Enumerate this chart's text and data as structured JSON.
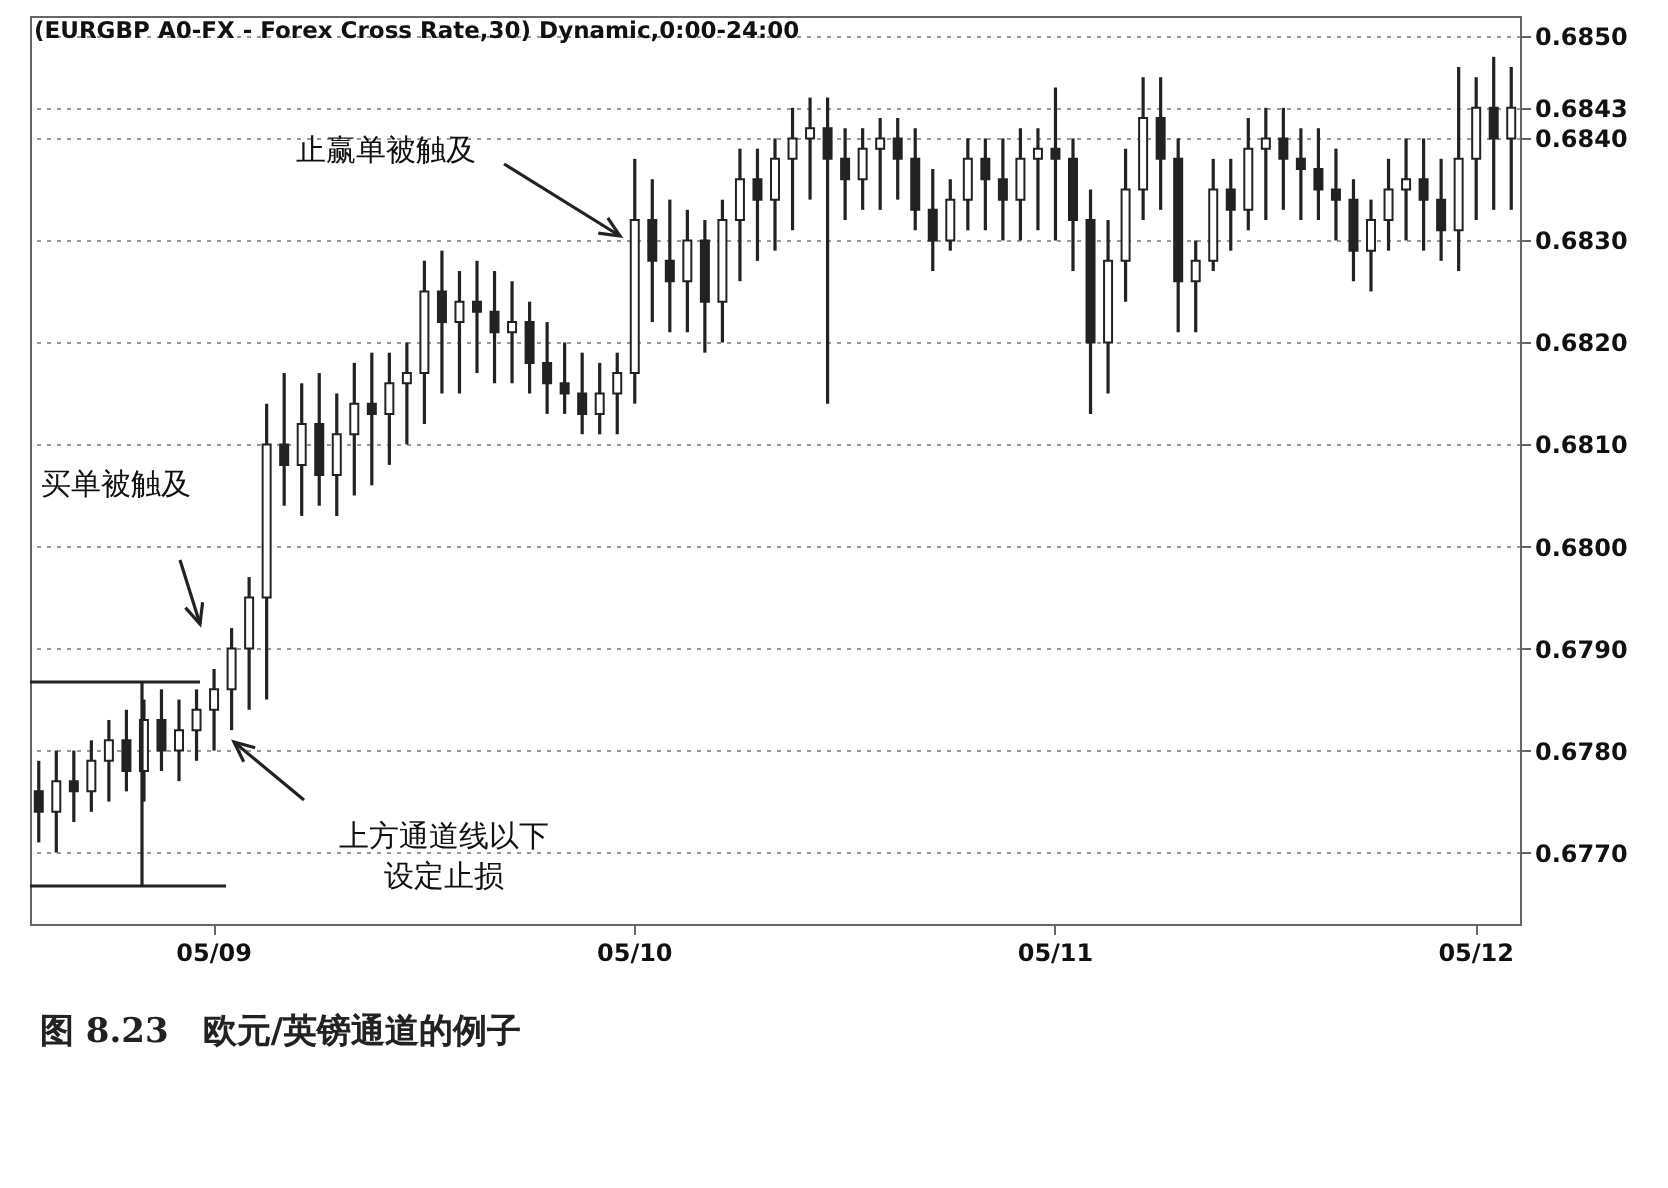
{
  "chart_data": {
    "type": "candlestick",
    "title": "(EURGBP A0-FX - Forex Cross Rate,30) Dynamic,0:00-24:00",
    "color": "#222222",
    "categories": [
      null,
      null,
      null,
      null,
      null,
      null,
      null,
      null,
      null,
      null,
      "05/09",
      null,
      null,
      null,
      null,
      null,
      null,
      null,
      null,
      null,
      null,
      null,
      null,
      null,
      null,
      null,
      null,
      null,
      null,
      null,
      null,
      null,
      null,
      null,
      "05/10",
      null,
      null,
      null,
      null,
      null,
      null,
      null,
      null,
      null,
      null,
      null,
      null,
      null,
      null,
      null,
      null,
      null,
      null,
      null,
      null,
      null,
      null,
      null,
      "05/11",
      null,
      null,
      null,
      null,
      null,
      null,
      null,
      null,
      null,
      null,
      null,
      null,
      null,
      null,
      null,
      null,
      null,
      null,
      null,
      null,
      null,
      null,
      null,
      "05/12",
      null,
      null
    ],
    "ohlc": [
      [
        0.6776,
        0.6779,
        0.6771,
        0.6774
      ],
      [
        0.6774,
        0.678,
        0.677,
        0.6777
      ],
      [
        0.6777,
        0.678,
        0.6773,
        0.6776
      ],
      [
        0.6776,
        0.6781,
        0.6774,
        0.6779
      ],
      [
        0.6779,
        0.6783,
        0.6775,
        0.6781
      ],
      [
        0.6781,
        0.6784,
        0.6776,
        0.6778
      ],
      [
        0.6778,
        0.6785,
        0.6775,
        0.6783
      ],
      [
        0.6783,
        0.6786,
        0.6778,
        0.678
      ],
      [
        0.678,
        0.6785,
        0.6777,
        0.6782
      ],
      [
        0.6782,
        0.6786,
        0.6779,
        0.6784
      ],
      [
        0.6784,
        0.6788,
        0.678,
        0.6786
      ],
      [
        0.6786,
        0.6792,
        0.6782,
        0.679
      ],
      [
        0.679,
        0.6797,
        0.6784,
        0.6795
      ],
      [
        0.6795,
        0.6814,
        0.6785,
        0.681
      ],
      [
        0.681,
        0.6817,
        0.6804,
        0.6808
      ],
      [
        0.6808,
        0.6816,
        0.6803,
        0.6812
      ],
      [
        0.6812,
        0.6817,
        0.6804,
        0.6807
      ],
      [
        0.6807,
        0.6815,
        0.6803,
        0.6811
      ],
      [
        0.6811,
        0.6818,
        0.6805,
        0.6814
      ],
      [
        0.6814,
        0.6819,
        0.6806,
        0.6813
      ],
      [
        0.6813,
        0.6819,
        0.6808,
        0.6816
      ],
      [
        0.6816,
        0.682,
        0.681,
        0.6817
      ],
      [
        0.6817,
        0.6828,
        0.6812,
        0.6825
      ],
      [
        0.6825,
        0.6829,
        0.6815,
        0.6822
      ],
      [
        0.6822,
        0.6827,
        0.6815,
        0.6824
      ],
      [
        0.6824,
        0.6828,
        0.6817,
        0.6823
      ],
      [
        0.6823,
        0.6827,
        0.6816,
        0.6821
      ],
      [
        0.6821,
        0.6826,
        0.6816,
        0.6822
      ],
      [
        0.6822,
        0.6824,
        0.6815,
        0.6818
      ],
      [
        0.6818,
        0.6822,
        0.6813,
        0.6816
      ],
      [
        0.6816,
        0.682,
        0.6813,
        0.6815
      ],
      [
        0.6815,
        0.6819,
        0.6811,
        0.6813
      ],
      [
        0.6813,
        0.6818,
        0.6811,
        0.6815
      ],
      [
        0.6815,
        0.6819,
        0.6811,
        0.6817
      ],
      [
        0.6817,
        0.6838,
        0.6814,
        0.6832
      ],
      [
        0.6832,
        0.6836,
        0.6822,
        0.6828
      ],
      [
        0.6828,
        0.6834,
        0.6821,
        0.6826
      ],
      [
        0.6826,
        0.6833,
        0.6821,
        0.683
      ],
      [
        0.683,
        0.6832,
        0.6819,
        0.6824
      ],
      [
        0.6824,
        0.6834,
        0.682,
        0.6832
      ],
      [
        0.6832,
        0.6839,
        0.6826,
        0.6836
      ],
      [
        0.6836,
        0.6839,
        0.6828,
        0.6834
      ],
      [
        0.6834,
        0.684,
        0.6829,
        0.6838
      ],
      [
        0.6838,
        0.6843,
        0.6831,
        0.684
      ],
      [
        0.684,
        0.6844,
        0.6834,
        0.6841
      ],
      [
        0.6841,
        0.6844,
        0.6814,
        0.6838
      ],
      [
        0.6838,
        0.6841,
        0.6832,
        0.6836
      ],
      [
        0.6836,
        0.6841,
        0.6833,
        0.6839
      ],
      [
        0.6839,
        0.6842,
        0.6833,
        0.684
      ],
      [
        0.684,
        0.6842,
        0.6834,
        0.6838
      ],
      [
        0.6838,
        0.6841,
        0.6831,
        0.6833
      ],
      [
        0.6833,
        0.6837,
        0.6827,
        0.683
      ],
      [
        0.683,
        0.6836,
        0.6829,
        0.6834
      ],
      [
        0.6834,
        0.684,
        0.6831,
        0.6838
      ],
      [
        0.6838,
        0.684,
        0.6831,
        0.6836
      ],
      [
        0.6836,
        0.684,
        0.683,
        0.6834
      ],
      [
        0.6834,
        0.6841,
        0.683,
        0.6838
      ],
      [
        0.6838,
        0.6841,
        0.6831,
        0.6839
      ],
      [
        0.6839,
        0.6845,
        0.683,
        0.6838
      ],
      [
        0.6838,
        0.684,
        0.6827,
        0.6832
      ],
      [
        0.6832,
        0.6835,
        0.6813,
        0.682
      ],
      [
        0.682,
        0.6832,
        0.6815,
        0.6828
      ],
      [
        0.6828,
        0.6839,
        0.6824,
        0.6835
      ],
      [
        0.6835,
        0.6846,
        0.6832,
        0.6842
      ],
      [
        0.6842,
        0.6846,
        0.6833,
        0.6838
      ],
      [
        0.6838,
        0.684,
        0.6821,
        0.6826
      ],
      [
        0.6826,
        0.683,
        0.6821,
        0.6828
      ],
      [
        0.6828,
        0.6838,
        0.6827,
        0.6835
      ],
      [
        0.6835,
        0.6838,
        0.6829,
        0.6833
      ],
      [
        0.6833,
        0.6842,
        0.6831,
        0.6839
      ],
      [
        0.6839,
        0.6843,
        0.6832,
        0.684
      ],
      [
        0.684,
        0.6843,
        0.6833,
        0.6838
      ],
      [
        0.6838,
        0.6841,
        0.6832,
        0.6837
      ],
      [
        0.6837,
        0.6841,
        0.6832,
        0.6835
      ],
      [
        0.6835,
        0.6839,
        0.683,
        0.6834
      ],
      [
        0.6834,
        0.6836,
        0.6826,
        0.6829
      ],
      [
        0.6829,
        0.6834,
        0.6825,
        0.6832
      ],
      [
        0.6832,
        0.6838,
        0.6829,
        0.6835
      ],
      [
        0.6835,
        0.684,
        0.683,
        0.6836
      ],
      [
        0.6836,
        0.684,
        0.6829,
        0.6834
      ],
      [
        0.6834,
        0.6838,
        0.6828,
        0.6831
      ],
      [
        0.6831,
        0.6847,
        0.6827,
        0.6838
      ],
      [
        0.6838,
        0.6846,
        0.6832,
        0.6843
      ],
      [
        0.6843,
        0.6848,
        0.6833,
        0.684
      ],
      [
        0.684,
        0.6847,
        0.6833,
        0.6843
      ]
    ],
    "ylim": [
      0.6763,
      0.6852
    ],
    "yticks": [
      {
        "value": 0.677,
        "label": "0.6770"
      },
      {
        "value": 0.678,
        "label": "0.6780"
      },
      {
        "value": 0.679,
        "label": "0.6790"
      },
      {
        "value": 0.68,
        "label": "0.6800"
      },
      {
        "value": 0.681,
        "label": "0.6810"
      },
      {
        "value": 0.682,
        "label": "0.6820"
      },
      {
        "value": 0.683,
        "label": "0.6830"
      },
      {
        "value": 0.684,
        "label": "0.6840"
      },
      {
        "value": 0.6843,
        "label": "0.6843"
      },
      {
        "value": 0.685,
        "label": "0.6850"
      }
    ],
    "grid": "y",
    "annotations": [
      "止赢单被触及",
      "买单被触及",
      "上方通道线以下设定止损",
      "图 8.23　欧元/英镑通道的例子"
    ]
  }
}
